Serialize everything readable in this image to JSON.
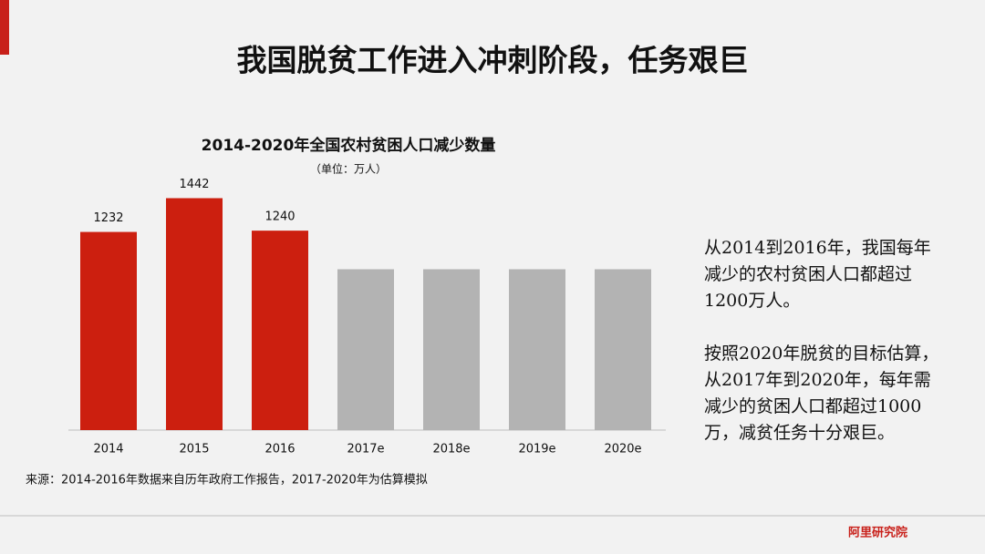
{
  "title": "我国脱贫工作进入冲刺阶段，任务艰巨",
  "chart_data": {
    "type": "bar",
    "title": "2014-2020年全国农村贫困人口减少数量",
    "subtitle": "（单位：万人）",
    "categories": [
      "2014",
      "2015",
      "2016",
      "2017e",
      "2018e",
      "2019e",
      "2020e"
    ],
    "series": [
      {
        "color": "#cc1f0f",
        "values": [
          1232,
          1442,
          1240,
          null,
          null,
          null,
          null
        ],
        "labels": true
      },
      {
        "color": "#b3b3b3",
        "values": [
          null,
          null,
          null,
          1000,
          1000,
          1000,
          1000
        ],
        "labels": false
      }
    ]
  },
  "side_text": [
    [
      "从2014到2016年，我国每年",
      "减少的农村贫困人口都超过",
      "1200万人。"
    ],
    [
      "按照2020年脱贫的目标估算，",
      "从2017年到2020年，每年需",
      "减少的贫困人口都超过1000",
      "万，减贫任务十分艰巨。"
    ]
  ],
  "source": "来源：2014-2016年数据来自历年政府工作报告，2017-2020年为估算模拟",
  "logo": "阿里研究院"
}
